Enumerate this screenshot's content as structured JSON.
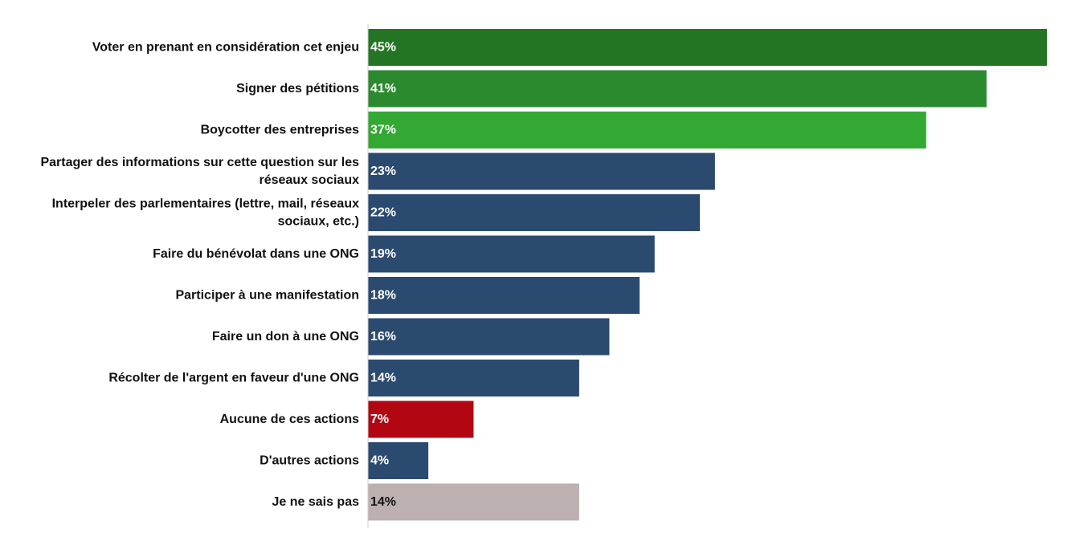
{
  "chart_data": {
    "type": "bar",
    "orientation": "horizontal",
    "title": "",
    "xlabel": "",
    "ylabel": "",
    "xlim": [
      0,
      45
    ],
    "grid": false,
    "legend": "none",
    "categories": [
      [
        "Voter en prenant en considération cet enjeu"
      ],
      [
        "Signer des pétitions"
      ],
      [
        "Boycotter des entreprises"
      ],
      [
        "Partager des informations sur cette question sur les",
        "réseaux sociaux"
      ],
      [
        "Interpeler des parlementaires (lettre, mail, réseaux",
        "sociaux, etc.)"
      ],
      [
        "Faire du bénévolat dans une ONG"
      ],
      [
        "Participer à une manifestation"
      ],
      [
        "Faire un don à une ONG"
      ],
      [
        "Récolter de l'argent en faveur d'une ONG"
      ],
      [
        "Aucune de ces actions"
      ],
      [
        "D'autres actions"
      ],
      [
        "Je ne sais pas"
      ]
    ],
    "values": [
      45,
      41,
      37,
      23,
      22,
      19,
      18,
      16,
      14,
      7,
      4,
      14
    ],
    "value_labels": [
      "45%",
      "41%",
      "37%",
      "23%",
      "22%",
      "19%",
      "18%",
      "16%",
      "14%",
      "7%",
      "4%",
      "14%"
    ],
    "bar_colors": [
      "#237524",
      "#2b8a2d",
      "#33a934",
      "#2b4a6f",
      "#2b4a6f",
      "#2b4a6f",
      "#2b4a6f",
      "#2b4a6f",
      "#2b4a6f",
      "#b30613",
      "#2b4a6f",
      "#bdb0b0"
    ],
    "value_label_colors": [
      "#ffffff",
      "#ffffff",
      "#ffffff",
      "#ffffff",
      "#ffffff",
      "#ffffff",
      "#ffffff",
      "#ffffff",
      "#ffffff",
      "#ffffff",
      "#ffffff",
      "#111111"
    ],
    "axis_color": "#cccccc"
  }
}
